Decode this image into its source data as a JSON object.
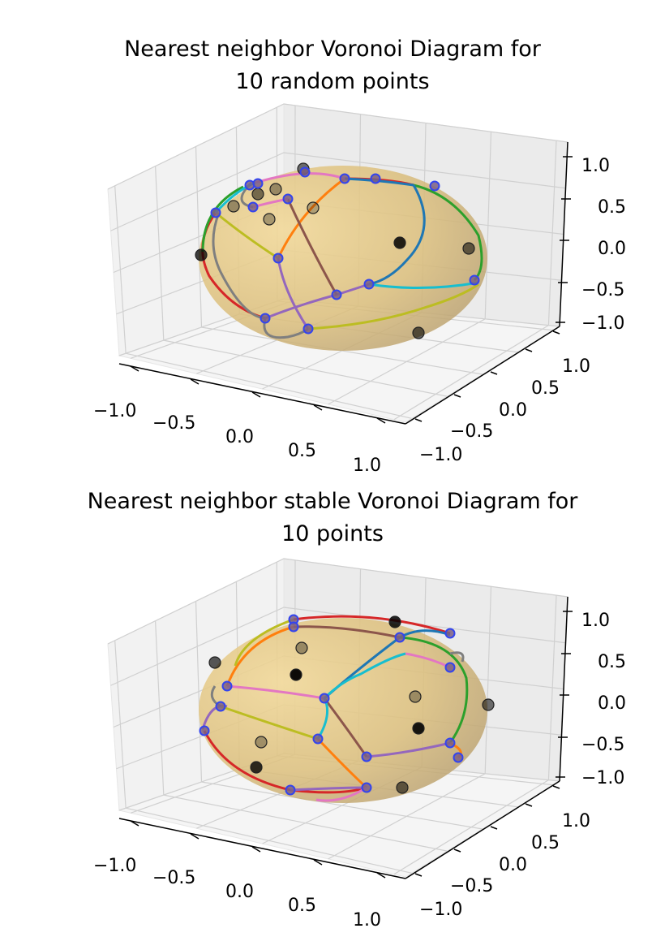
{
  "charts": [
    {
      "title_line1": "Nearest neighbor Voronoi Diagram for",
      "title_line2": "10 random points",
      "z_ticks": [
        "1.0",
        "0.5",
        "0.0",
        "−0.5",
        "−1.0"
      ],
      "x_ticks": [
        "−1.0",
        "−0.5",
        "0.0",
        "0.5",
        "1.0"
      ],
      "y_ticks": [
        "1.0",
        "0.5",
        "0.0",
        "−0.5",
        "−1.0"
      ]
    },
    {
      "title_line1": "Nearest neighbor stable Voronoi Diagram for",
      "title_line2": "10 points",
      "z_ticks": [
        "1.0",
        "0.5",
        "0.0",
        "−0.5",
        "−1.0"
      ],
      "x_ticks": [
        "−1.0",
        "−0.5",
        "0.0",
        "0.5",
        "1.0"
      ],
      "y_ticks": [
        "1.0",
        "0.5",
        "0.0",
        "−0.5",
        "−1.0"
      ]
    }
  ],
  "chart_data": [
    {
      "type": "scatter",
      "title": "Nearest neighbor Voronoi Diagram for 10 random points",
      "xlim": [
        -1,
        1
      ],
      "ylim": [
        -1,
        1
      ],
      "zlim": [
        -1,
        1
      ],
      "xticks": [
        -1.0,
        -0.5,
        0.0,
        0.5,
        1.0
      ],
      "yticks": [
        -1.0,
        -0.5,
        0.0,
        0.5,
        1.0
      ],
      "zticks": [
        -1.0,
        -0.5,
        0.0,
        0.5,
        1.0
      ],
      "grid": true,
      "surface": "unit sphere",
      "surface_color": "#d4b25a",
      "marker_color": "#000000",
      "vertex_color": "#3344ee",
      "edge_colors": [
        "#d62728",
        "#1f77b4",
        "#2ca02c",
        "#ff7f0e",
        "#9467bd",
        "#8c564b",
        "#e377c2",
        "#7f7f7f",
        "#bcbd22",
        "#17becf"
      ]
    },
    {
      "type": "scatter",
      "title": "Nearest neighbor stable Voronoi Diagram for 10 points",
      "xlim": [
        -1,
        1
      ],
      "ylim": [
        -1,
        1
      ],
      "zlim": [
        -1,
        1
      ],
      "xticks": [
        -1.0,
        -0.5,
        0.0,
        0.5,
        1.0
      ],
      "yticks": [
        -1.0,
        -0.5,
        0.0,
        0.5,
        1.0
      ],
      "zticks": [
        -1.0,
        -0.5,
        0.0,
        0.5,
        1.0
      ],
      "grid": true,
      "surface": "unit sphere",
      "surface_color": "#d4b25a",
      "marker_color": "#000000",
      "vertex_color": "#3344ee",
      "edge_colors": [
        "#d62728",
        "#1f77b4",
        "#2ca02c",
        "#ff7f0e",
        "#9467bd",
        "#8c564b",
        "#e377c2",
        "#7f7f7f",
        "#bcbd22",
        "#17becf"
      ]
    }
  ]
}
